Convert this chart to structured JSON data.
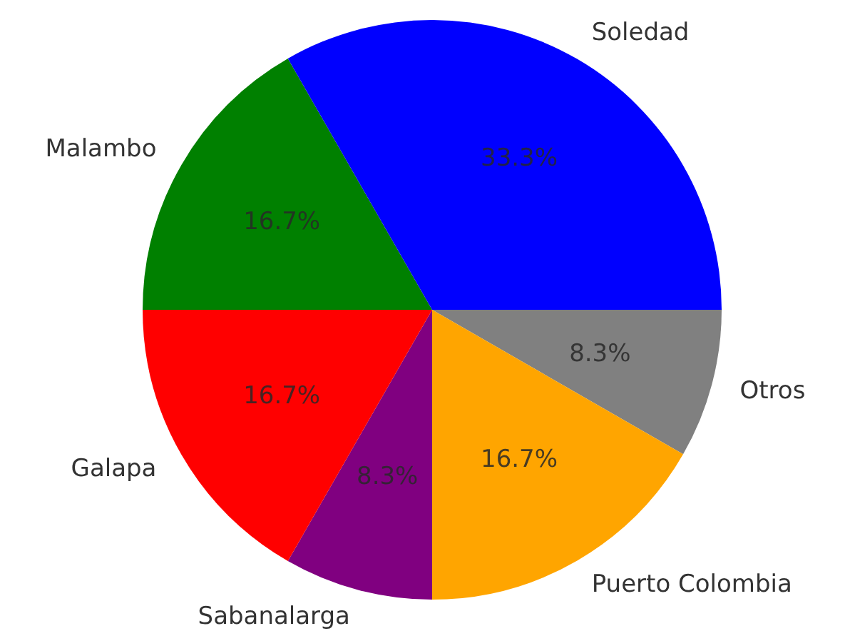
{
  "chart_data": {
    "type": "pie",
    "categories": [
      "Soledad",
      "Malambo",
      "Galapa",
      "Sabanalarga",
      "Puerto Colombia",
      "Otros"
    ],
    "values": [
      33.3,
      16.7,
      16.7,
      8.3,
      16.7,
      8.3
    ],
    "colors": [
      "#0000ff",
      "#008000",
      "#ff0000",
      "#800080",
      "#ffa500",
      "#808080"
    ],
    "value_labels": [
      "33.3%",
      "16.7%",
      "16.7%",
      "8.3%",
      "16.7%",
      "8.3%"
    ],
    "legend": false
  }
}
